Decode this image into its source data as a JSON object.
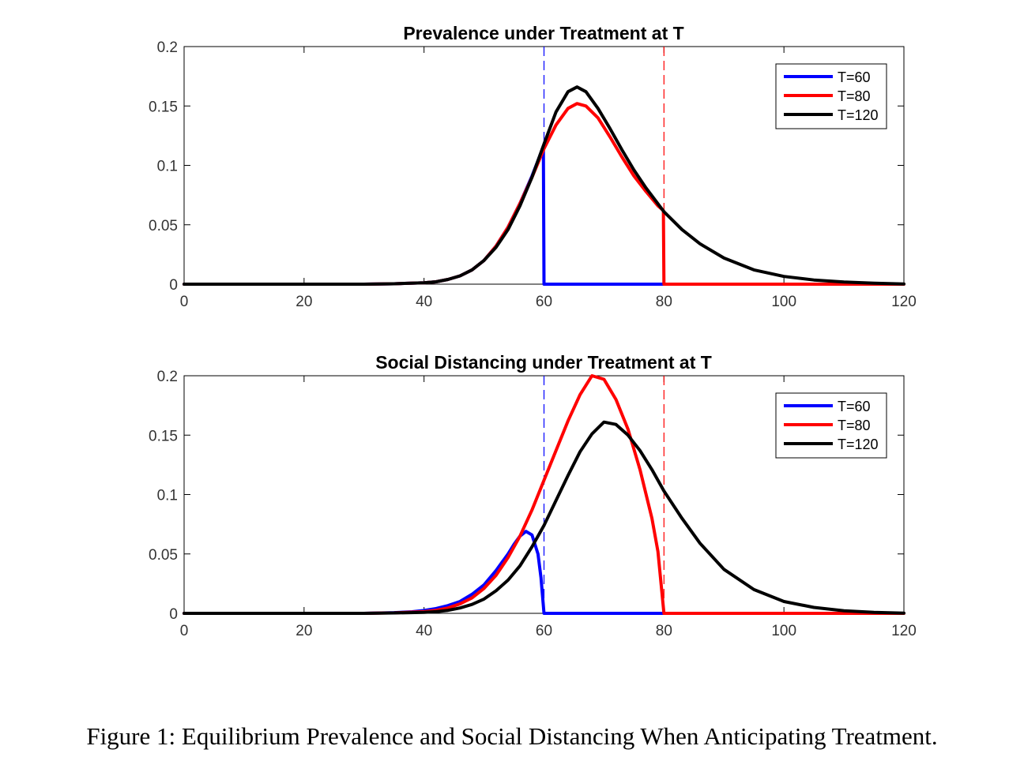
{
  "caption": "Figure 1: Equilibrium Prevalence and Social Distancing When Anticipating Treatment.",
  "colors": {
    "T=60": "#0000ff",
    "T=80": "#ff0000",
    "T=120": "#000000",
    "axis": "#000000",
    "background": "#ffffff"
  },
  "chart_data": [
    {
      "type": "line",
      "title": "Prevalence under Treatment at T",
      "xlabel": "",
      "ylabel": "",
      "xlim": [
        0,
        120
      ],
      "ylim": [
        0,
        0.2
      ],
      "xticks": [
        0,
        20,
        40,
        60,
        80,
        100,
        120
      ],
      "yticks": [
        0,
        0.05,
        0.1,
        0.15,
        0.2
      ],
      "xtick_labels": [
        "0",
        "20",
        "40",
        "60",
        "80",
        "100",
        "120"
      ],
      "ytick_labels": [
        "0",
        "0.05",
        "0.1",
        "0.15",
        "0.2"
      ],
      "grid": false,
      "legend_position": "top-right",
      "vlines": [
        {
          "x": 60,
          "color": "#0000ff",
          "style": "dashed"
        },
        {
          "x": 80,
          "color": "#ff0000",
          "style": "dashed"
        }
      ],
      "series": [
        {
          "name": "T=60",
          "color": "#0000ff",
          "x": [
            0,
            20,
            30,
            35,
            40,
            42,
            44,
            46,
            48,
            50,
            52,
            54,
            56,
            58,
            59,
            59.9,
            60,
            65,
            70,
            75,
            80
          ],
          "y": [
            0,
            0,
            0,
            0.0003,
            0.0012,
            0.002,
            0.004,
            0.007,
            0.012,
            0.02,
            0.032,
            0.048,
            0.068,
            0.091,
            0.104,
            0.116,
            0,
            0,
            0,
            0,
            0
          ]
        },
        {
          "name": "T=80",
          "color": "#ff0000",
          "x": [
            0,
            20,
            30,
            35,
            40,
            42,
            44,
            46,
            48,
            50,
            52,
            54,
            56,
            58,
            60,
            62,
            64,
            65.5,
            67,
            69,
            71,
            73,
            75,
            77,
            79,
            79.9,
            80,
            90,
            100,
            110,
            120
          ],
          "y": [
            0,
            0,
            0,
            0.0003,
            0.0012,
            0.002,
            0.004,
            0.007,
            0.012,
            0.02,
            0.032,
            0.048,
            0.068,
            0.09,
            0.114,
            0.134,
            0.148,
            0.152,
            0.15,
            0.14,
            0.124,
            0.107,
            0.091,
            0.078,
            0.066,
            0.062,
            0,
            0,
            0,
            0,
            0
          ]
        },
        {
          "name": "T=120",
          "color": "#000000",
          "x": [
            0,
            20,
            30,
            35,
            40,
            42,
            44,
            46,
            48,
            50,
            52,
            54,
            56,
            58,
            60,
            62,
            64,
            65.5,
            67,
            69,
            71,
            73,
            75,
            77,
            80,
            83,
            86,
            90,
            95,
            100,
            105,
            110,
            115,
            120
          ],
          "y": [
            0,
            0,
            0,
            0.0003,
            0.0012,
            0.002,
            0.004,
            0.007,
            0.012,
            0.02,
            0.031,
            0.046,
            0.066,
            0.09,
            0.118,
            0.145,
            0.162,
            0.166,
            0.162,
            0.148,
            0.131,
            0.113,
            0.096,
            0.081,
            0.061,
            0.046,
            0.034,
            0.022,
            0.012,
            0.0065,
            0.0035,
            0.0018,
            0.0008,
            0.0002
          ]
        }
      ]
    },
    {
      "type": "line",
      "title": "Social Distancing under Treatment at T",
      "xlabel": "",
      "ylabel": "",
      "xlim": [
        0,
        120
      ],
      "ylim": [
        0,
        0.2
      ],
      "xticks": [
        0,
        20,
        40,
        60,
        80,
        100,
        120
      ],
      "yticks": [
        0,
        0.05,
        0.1,
        0.15,
        0.2
      ],
      "xtick_labels": [
        "0",
        "20",
        "40",
        "60",
        "80",
        "100",
        "120"
      ],
      "ytick_labels": [
        "0",
        "0.05",
        "0.1",
        "0.15",
        "0.2"
      ],
      "grid": false,
      "legend_position": "top-right",
      "vlines": [
        {
          "x": 60,
          "color": "#0000ff",
          "style": "dashed"
        },
        {
          "x": 80,
          "color": "#ff0000",
          "style": "dashed"
        }
      ],
      "series": [
        {
          "name": "T=60",
          "color": "#0000ff",
          "x": [
            0,
            20,
            30,
            35,
            38,
            40,
            42,
            44,
            46,
            48,
            50,
            52,
            54,
            55,
            56,
            57,
            58,
            59,
            59.5,
            60,
            70,
            80
          ],
          "y": [
            0,
            0,
            0,
            0.0006,
            0.0013,
            0.0024,
            0.004,
            0.0065,
            0.01,
            0.016,
            0.024,
            0.036,
            0.05,
            0.058,
            0.065,
            0.069,
            0.066,
            0.05,
            0.03,
            0,
            0,
            0
          ]
        },
        {
          "name": "T=80",
          "color": "#ff0000",
          "x": [
            0,
            20,
            30,
            35,
            40,
            42,
            44,
            46,
            48,
            50,
            52,
            54,
            56,
            58,
            60,
            62,
            64,
            66,
            68,
            70,
            72,
            74,
            76,
            78,
            79,
            80,
            90,
            100,
            110,
            120
          ],
          "y": [
            0,
            0,
            0,
            0.0004,
            0.0014,
            0.0025,
            0.0045,
            0.008,
            0.013,
            0.021,
            0.032,
            0.047,
            0.065,
            0.087,
            0.112,
            0.137,
            0.162,
            0.184,
            0.2,
            0.197,
            0.18,
            0.155,
            0.121,
            0.08,
            0.052,
            0,
            0,
            0,
            0,
            0
          ]
        },
        {
          "name": "T=120",
          "color": "#000000",
          "x": [
            0,
            20,
            30,
            35,
            40,
            42,
            44,
            46,
            48,
            50,
            52,
            54,
            56,
            58,
            60,
            62,
            64,
            66,
            68,
            70,
            72,
            74,
            76,
            78,
            80,
            83,
            86,
            90,
            95,
            100,
            105,
            110,
            115,
            120
          ],
          "y": [
            0,
            0,
            0,
            0.0003,
            0.0008,
            0.0014,
            0.0025,
            0.0045,
            0.0075,
            0.012,
            0.019,
            0.028,
            0.04,
            0.056,
            0.074,
            0.095,
            0.116,
            0.136,
            0.151,
            0.161,
            0.159,
            0.15,
            0.137,
            0.121,
            0.103,
            0.08,
            0.059,
            0.037,
            0.02,
            0.01,
            0.005,
            0.0022,
            0.0008,
            0.0002
          ]
        }
      ]
    }
  ]
}
